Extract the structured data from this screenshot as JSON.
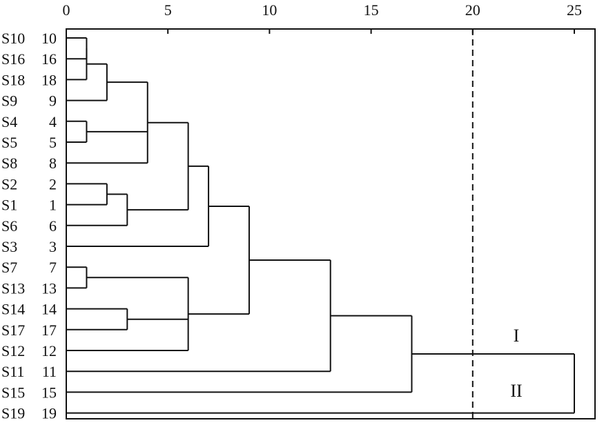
{
  "chart_data": {
    "type": "dendrogram",
    "title": "",
    "xlabel": "",
    "ylabel": "",
    "xlim": [
      0,
      25
    ],
    "x_ticks": [
      0,
      5,
      10,
      15,
      20,
      25
    ],
    "grid": false,
    "leaves": [
      {
        "sample": "S10",
        "case": "10"
      },
      {
        "sample": "S16",
        "case": "16"
      },
      {
        "sample": "S18",
        "case": "18"
      },
      {
        "sample": "S9",
        "case": "9"
      },
      {
        "sample": "S4",
        "case": "4"
      },
      {
        "sample": "S5",
        "case": "5"
      },
      {
        "sample": "S8",
        "case": "8"
      },
      {
        "sample": "S2",
        "case": "2"
      },
      {
        "sample": "S1",
        "case": "1"
      },
      {
        "sample": "S6",
        "case": "6"
      },
      {
        "sample": "S3",
        "case": "3"
      },
      {
        "sample": "S7",
        "case": "7"
      },
      {
        "sample": "S13",
        "case": "13"
      },
      {
        "sample": "S14",
        "case": "14"
      },
      {
        "sample": "S17",
        "case": "17"
      },
      {
        "sample": "S12",
        "case": "12"
      },
      {
        "sample": "S11",
        "case": "11"
      },
      {
        "sample": "S15",
        "case": "15"
      },
      {
        "sample": "S19",
        "case": "19"
      }
    ],
    "merges": [
      {
        "members": [
          0,
          1
        ],
        "distance": 1
      },
      {
        "members": [
          0,
          1,
          2
        ],
        "distance": 1
      },
      {
        "members": [
          4,
          5
        ],
        "distance": 1
      },
      {
        "members": [
          11,
          12
        ],
        "distance": 1
      },
      {
        "members": [
          0,
          1,
          2,
          3
        ],
        "distance": 2
      },
      {
        "members": [
          7,
          8
        ],
        "distance": 2
      },
      {
        "members": [
          7,
          8,
          9
        ],
        "distance": 3
      },
      {
        "members": [
          13,
          14
        ],
        "distance": 3
      },
      {
        "members": [
          0,
          1,
          2,
          3,
          4,
          5,
          6
        ],
        "distance": 4
      },
      {
        "members": [
          0,
          1,
          2,
          3,
          4,
          5,
          6,
          7,
          8,
          9
        ],
        "distance": 6
      },
      {
        "members": [
          11,
          12,
          13,
          14,
          15
        ],
        "distance": 6
      },
      {
        "members": [
          0,
          1,
          2,
          3,
          4,
          5,
          6,
          7,
          8,
          9,
          10
        ],
        "distance": 7
      },
      {
        "members": [
          0,
          1,
          2,
          3,
          4,
          5,
          6,
          7,
          8,
          9,
          10,
          11,
          12,
          13,
          14,
          15
        ],
        "distance": 9
      },
      {
        "members": [
          0,
          1,
          2,
          3,
          4,
          5,
          6,
          7,
          8,
          9,
          10,
          11,
          12,
          13,
          14,
          15,
          16
        ],
        "distance": 13
      },
      {
        "members": [
          0,
          1,
          2,
          3,
          4,
          5,
          6,
          7,
          8,
          9,
          10,
          11,
          12,
          13,
          14,
          15,
          16,
          17
        ],
        "distance": 17
      },
      {
        "members": [
          0,
          1,
          2,
          3,
          4,
          5,
          6,
          7,
          8,
          9,
          10,
          11,
          12,
          13,
          14,
          15,
          16,
          17,
          18
        ],
        "distance": 25
      }
    ],
    "cut_line": {
      "distance": 20,
      "style": "dashed"
    },
    "cluster_labels": [
      "I",
      "II"
    ]
  }
}
